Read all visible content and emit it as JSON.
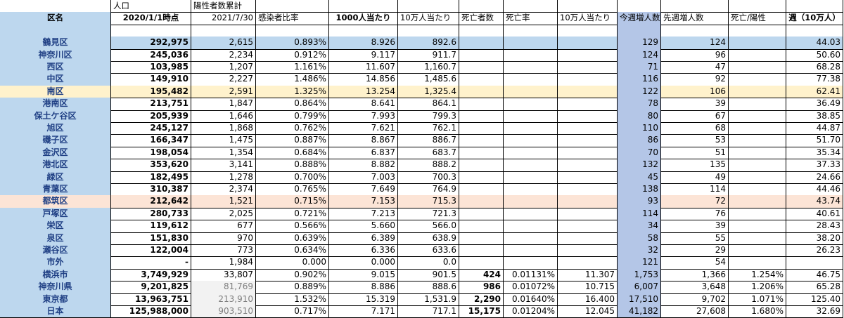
{
  "super_headers": [
    "",
    "人口",
    "陽性者数累計"
  ],
  "headers": [
    "区名",
    "2020/1/1時点",
    "2021/7/30",
    "感染者比率",
    "1000人当たり",
    "10万人当たり",
    "死亡者数",
    "死亡率",
    "10万人当たり",
    "今週増人数",
    "先週増人数",
    "死亡/陽性",
    "週（10万人）"
  ],
  "rows": [
    {
      "name": "鶴見区",
      "cells": [
        "292,975",
        "2,615",
        "0.893%",
        "8.926",
        "892.6",
        "",
        "",
        "",
        "129",
        "124",
        "",
        "44.03"
      ],
      "style": "blue"
    },
    {
      "name": "神奈川区",
      "cells": [
        "245,036",
        "2,234",
        "0.912%",
        "9.117",
        "911.7",
        "",
        "",
        "",
        "124",
        "96",
        "",
        "50.60"
      ]
    },
    {
      "name": "西区",
      "cells": [
        "103,985",
        "1,207",
        "1.161%",
        "11.607",
        "1,160.7",
        "",
        "",
        "",
        "71",
        "47",
        "",
        "68.28"
      ]
    },
    {
      "name": "中区",
      "cells": [
        "149,910",
        "2,227",
        "1.486%",
        "14.856",
        "1,485.6",
        "",
        "",
        "",
        "116",
        "92",
        "",
        "77.38"
      ]
    },
    {
      "name": "南区",
      "cells": [
        "195,482",
        "2,591",
        "1.325%",
        "13.254",
        "1,325.4",
        "",
        "",
        "",
        "122",
        "106",
        "",
        "62.41"
      ],
      "style": "yellow"
    },
    {
      "name": "港南区",
      "cells": [
        "213,751",
        "1,847",
        "0.864%",
        "8.641",
        "864.1",
        "",
        "",
        "",
        "78",
        "39",
        "",
        "36.49"
      ]
    },
    {
      "name": "保土ケ谷区",
      "cells": [
        "205,939",
        "1,646",
        "0.799%",
        "7.993",
        "799.3",
        "",
        "",
        "",
        "80",
        "67",
        "",
        "38.85"
      ]
    },
    {
      "name": "旭区",
      "cells": [
        "245,127",
        "1,868",
        "0.762%",
        "7.621",
        "762.1",
        "",
        "",
        "",
        "110",
        "68",
        "",
        "44.87"
      ]
    },
    {
      "name": "磯子区",
      "cells": [
        "166,347",
        "1,475",
        "0.887%",
        "8.867",
        "886.7",
        "",
        "",
        "",
        "86",
        "53",
        "",
        "51.70"
      ]
    },
    {
      "name": "金沢区",
      "cells": [
        "198,054",
        "1,354",
        "0.684%",
        "6.837",
        "683.7",
        "",
        "",
        "",
        "70",
        "51",
        "",
        "35.34"
      ]
    },
    {
      "name": "港北区",
      "cells": [
        "353,620",
        "3,141",
        "0.888%",
        "8.882",
        "888.2",
        "",
        "",
        "",
        "132",
        "135",
        "",
        "37.33"
      ]
    },
    {
      "name": "緑区",
      "cells": [
        "182,495",
        "1,278",
        "0.700%",
        "7.003",
        "700.3",
        "",
        "",
        "",
        "45",
        "49",
        "",
        "24.66"
      ]
    },
    {
      "name": "青葉区",
      "cells": [
        "310,387",
        "2,374",
        "0.765%",
        "7.649",
        "764.9",
        "",
        "",
        "",
        "138",
        "114",
        "",
        "44.46"
      ]
    },
    {
      "name": "都筑区",
      "cells": [
        "212,642",
        "1,521",
        "0.715%",
        "7.153",
        "715.3",
        "",
        "",
        "",
        "93",
        "72",
        "",
        "43.74"
      ],
      "style": "peach"
    },
    {
      "name": "戸塚区",
      "cells": [
        "280,733",
        "2,025",
        "0.721%",
        "7.213",
        "721.3",
        "",
        "",
        "",
        "114",
        "76",
        "",
        "40.61"
      ]
    },
    {
      "name": "栄区",
      "cells": [
        "119,612",
        "677",
        "0.566%",
        "5.660",
        "566.0",
        "",
        "",
        "",
        "34",
        "39",
        "",
        "28.43"
      ]
    },
    {
      "name": "泉区",
      "cells": [
        "151,830",
        "970",
        "0.639%",
        "6.389",
        "638.9",
        "",
        "",
        "",
        "58",
        "55",
        "",
        "38.20"
      ]
    },
    {
      "name": "瀬谷区",
      "cells": [
        "122,004",
        "773",
        "0.634%",
        "6.336",
        "633.6",
        "",
        "",
        "",
        "32",
        "29",
        "",
        "26.23"
      ]
    },
    {
      "name": "市外",
      "cells": [
        "-",
        "1,984",
        "0.000",
        "0.000",
        "0.0",
        "",
        "",
        "",
        "121",
        "54",
        "",
        ""
      ]
    },
    {
      "name": "横浜市",
      "cells": [
        "3,749,929",
        "33,807",
        "0.902%",
        "9.015",
        "901.5",
        "424",
        "0.01131%",
        "11.307",
        "1,753",
        "1,366",
        "1.254%",
        "46.75"
      ]
    },
    {
      "name": "神奈川県",
      "cells": [
        "9,201,825",
        "81,769",
        "0.889%",
        "8.886",
        "888.6",
        "986",
        "0.01072%",
        "10.715",
        "6,007",
        "3,648",
        "1.206%",
        "65.28"
      ],
      "gray_col": true
    },
    {
      "name": "東京都",
      "cells": [
        "13,963,751",
        "213,910",
        "1.532%",
        "15.319",
        "1,531.9",
        "2,290",
        "0.01640%",
        "16.400",
        "17,510",
        "9,702",
        "1.071%",
        "125.40"
      ],
      "gray_col": true
    },
    {
      "name": "日本",
      "cells": [
        "125,988,000",
        "903,510",
        "0.717%",
        "7.171",
        "717.1",
        "15,175",
        "0.01204%",
        "12.045",
        "41,182",
        "27,608",
        "1.680%",
        "32.69"
      ],
      "gray_col": true
    }
  ],
  "colors": {
    "name_col": "#bdd7ee",
    "week_col": "#b4c6e7",
    "row_blue": "#bdd7ee",
    "row_yellow": "#fff2cc",
    "row_peach": "#fce4d6",
    "header_gray": "#f2f2f2",
    "text_gray": "#7f7f7f"
  }
}
